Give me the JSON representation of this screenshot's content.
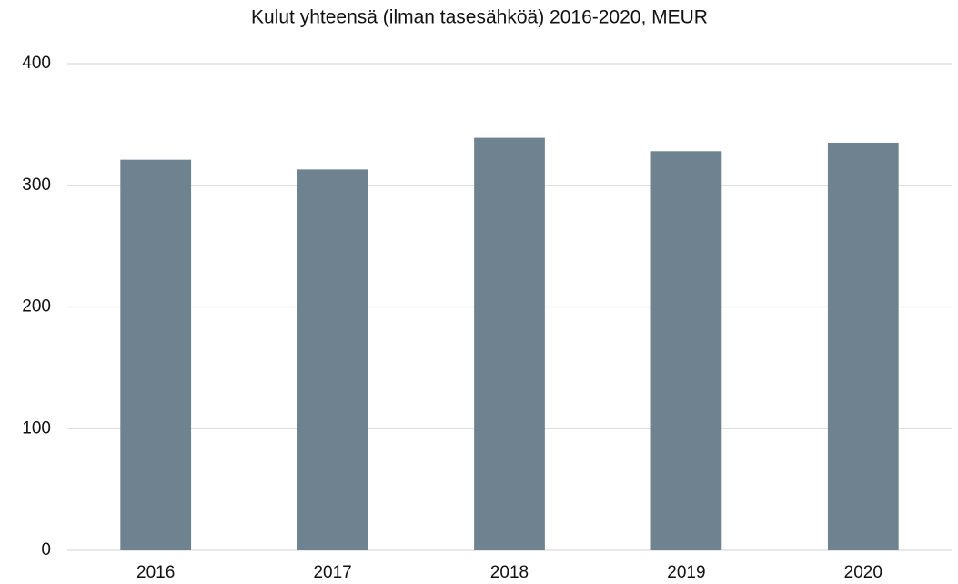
{
  "chart_data": {
    "type": "bar",
    "title": "Kulut yhteensä (ilman tasesähköä) 2016-2020, MEUR",
    "categories": [
      "2016",
      "2017",
      "2018",
      "2019",
      "2020"
    ],
    "values": [
      321,
      313,
      339,
      328,
      335
    ],
    "color": "#6e838f",
    "ylim": [
      0,
      400
    ],
    "yticks": [
      0,
      100,
      200,
      300,
      400
    ],
    "grid": true
  }
}
